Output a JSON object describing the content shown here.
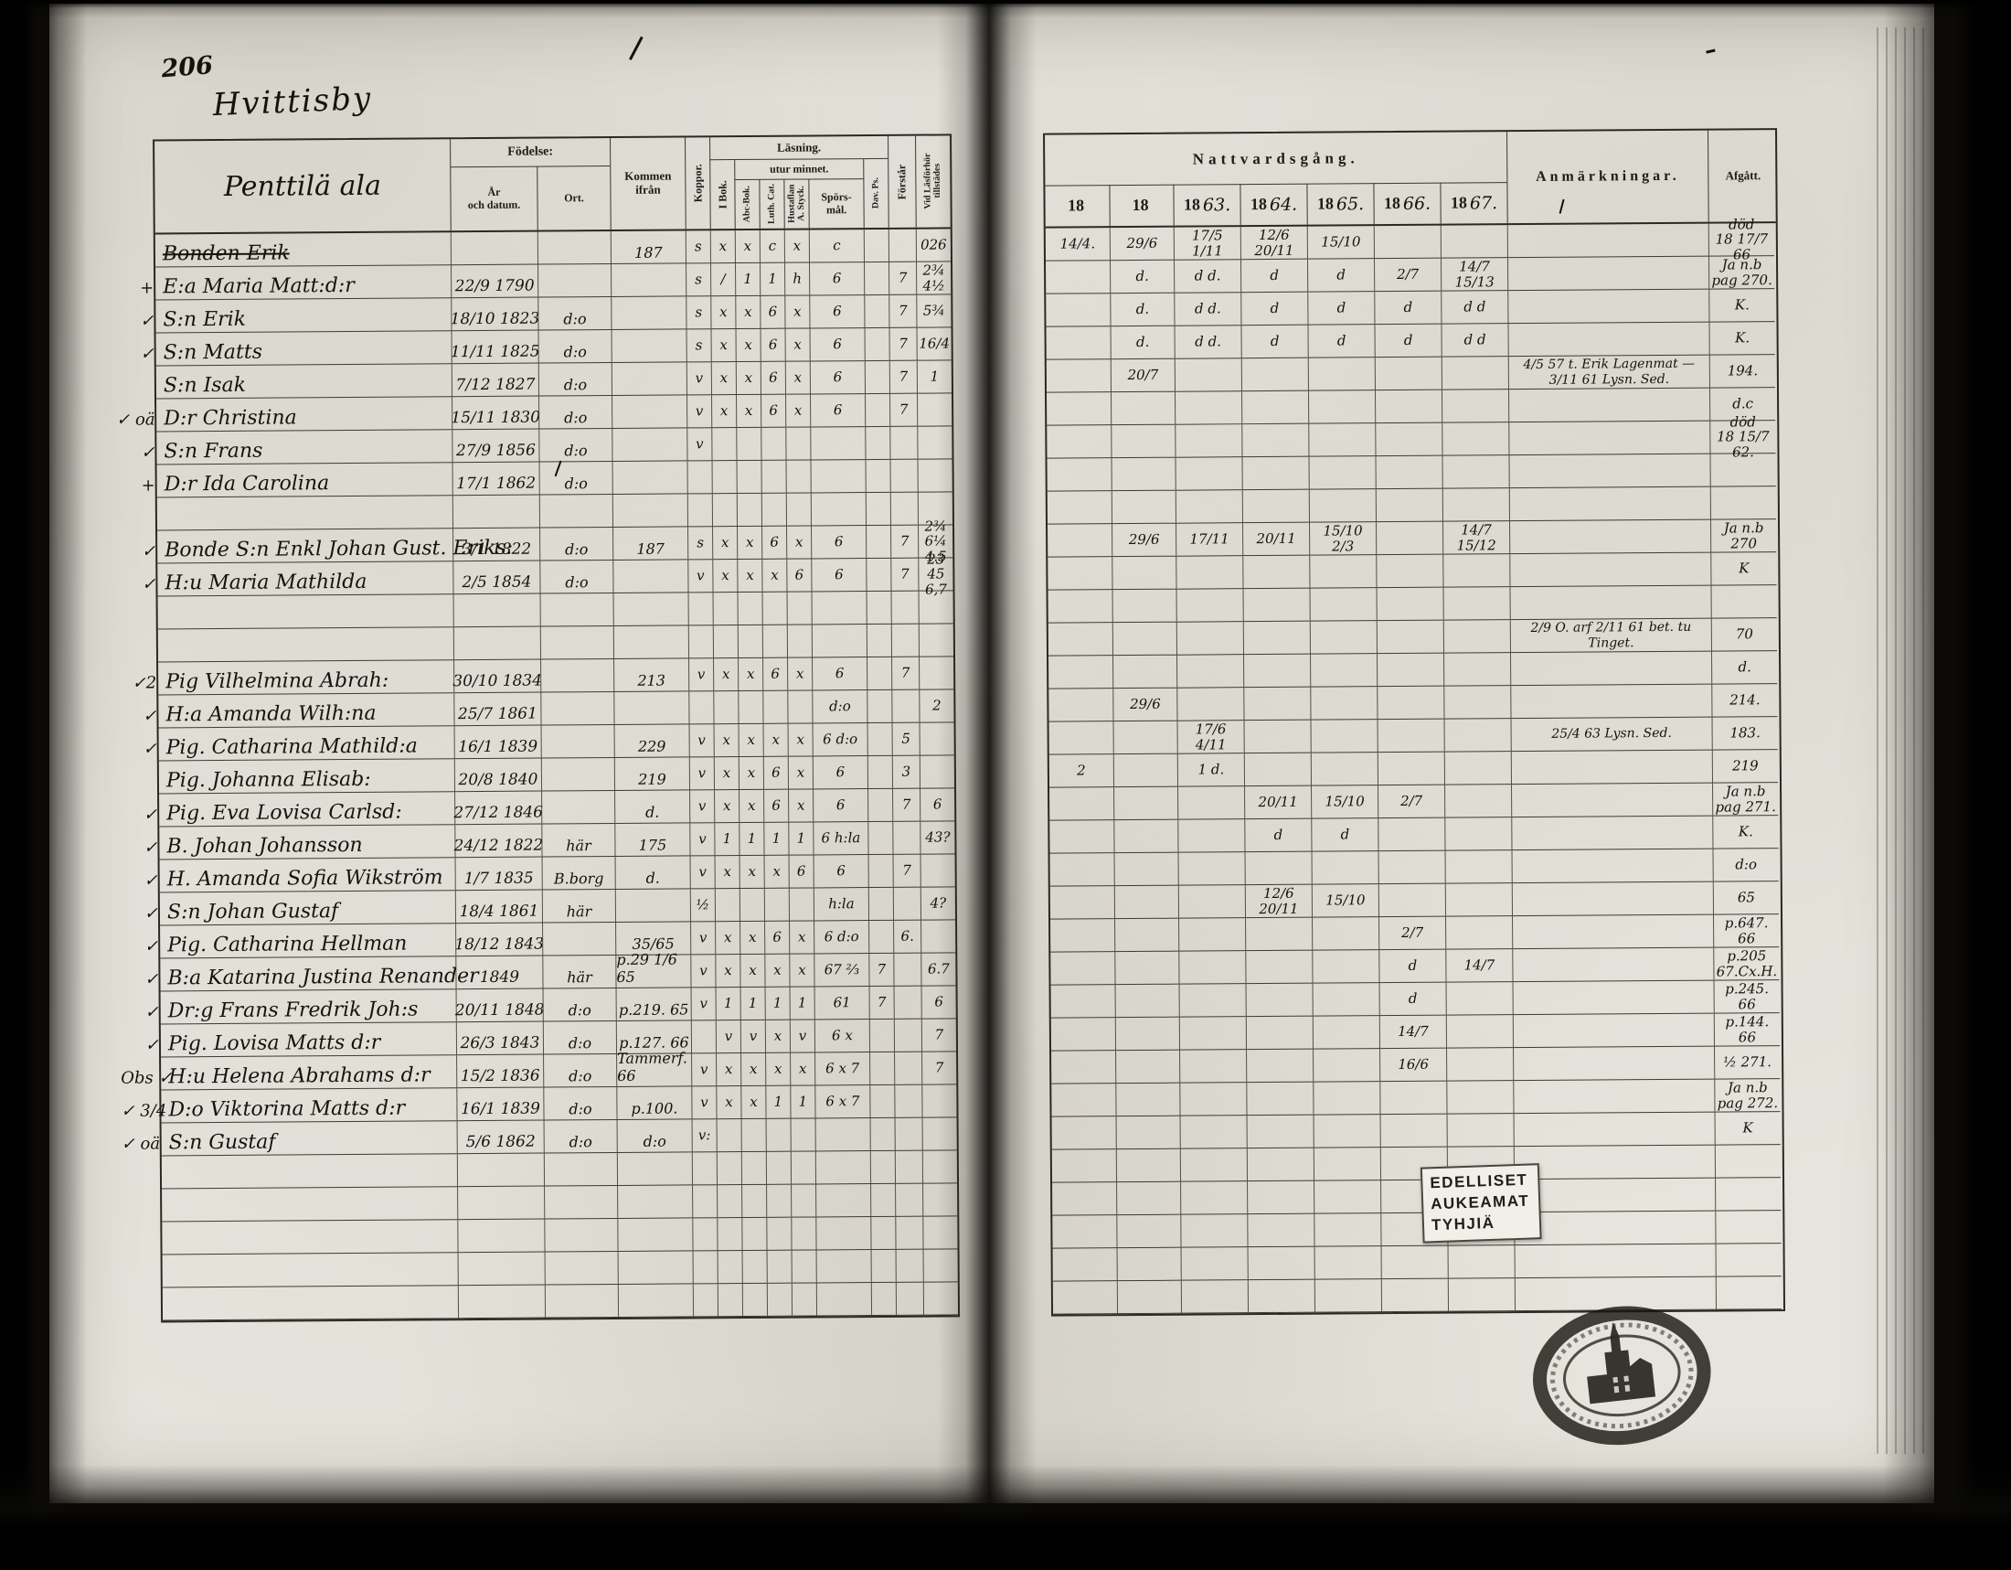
{
  "page_number": "206",
  "titles": {
    "main": "Hvittisby",
    "sub": "Penttilä ala"
  },
  "left_header": {
    "fodelse": "Födelse:",
    "ar": "År\noch datum.",
    "ort": "Ort.",
    "kommen": "Kommen ifrån",
    "koppor": "Koppor.",
    "lasning": "Läsning.",
    "utur": "utur minnet.",
    "ibok": "I Bok.",
    "abc": "Abc-Bok.",
    "luth": "Luth. Cat.",
    "hust": "Hustaflan\nA. Styck.",
    "spors": "Spörs-\nmål.",
    "dav": "Dav. Ps.",
    "forstar": "Förstår",
    "vidlas": "Vid Läsförhör\ntillstädes"
  },
  "right_header": {
    "natt": "Nattvardsgång.",
    "anm": "Anmärkningar.",
    "afg": "Afgått.",
    "years": [
      {
        "printed": "18",
        "hand": ""
      },
      {
        "printed": "18",
        "hand": ""
      },
      {
        "printed": "18",
        "hand": "63."
      },
      {
        "printed": "18",
        "hand": "64."
      },
      {
        "printed": "18",
        "hand": "65."
      },
      {
        "printed": "18",
        "hand": "66."
      },
      {
        "printed": "18",
        "hand": "67."
      }
    ]
  },
  "stamp": {
    "lines": [
      "EDELLISET",
      "AUKEAMAT",
      "TYHJIÄ"
    ]
  },
  "seal": {
    "icon": "church-seal-icon"
  },
  "rows": [
    {
      "m": "",
      "name": "Bonden Erik",
      "strike": true,
      "date": "",
      "ort": "",
      "kommen": "187",
      "marks": [
        "s",
        "x",
        "x",
        "c",
        "x",
        "c",
        "",
        ""
      ],
      "vidlas": "026",
      "natt": [
        "14/4.",
        "29/6",
        "17/5 1/11",
        "12/6 20/11",
        "15/10",
        "",
        ""
      ],
      "anm": "",
      "afg": "död\n18 17/7 66"
    },
    {
      "m": "+",
      "name": "E:a Maria Matt:d:r",
      "strike": false,
      "date": "22/9 1790",
      "ort": "",
      "kommen": "",
      "marks": [
        "s",
        "/",
        "1",
        "1",
        "h",
        "6",
        "",
        "7"
      ],
      "vidlas": "2¾ 4½",
      "natt": [
        "",
        "d.",
        "d d.",
        "d",
        "d",
        "2/7",
        "14/7 15/13"
      ],
      "anm": "",
      "afg": "Ja n.b\npag 270."
    },
    {
      "m": "✓",
      "name": "S:n Erik",
      "strike": false,
      "date": "18/10 1823",
      "ort": "d:o",
      "kommen": "",
      "marks": [
        "s",
        "x",
        "x",
        "6",
        "x",
        "6",
        "",
        "7"
      ],
      "vidlas": "5¾",
      "natt": [
        "",
        "d.",
        "d d.",
        "d",
        "d",
        "d",
        "d d"
      ],
      "anm": "",
      "afg": "K."
    },
    {
      "m": "✓",
      "name": "S:n Matts",
      "strike": false,
      "date": "11/11 1825",
      "ort": "d:o",
      "kommen": "",
      "marks": [
        "s",
        "x",
        "x",
        "6",
        "x",
        "6",
        "",
        "7"
      ],
      "vidlas": "16/4",
      "natt": [
        "",
        "d.",
        "d d.",
        "d",
        "d",
        "d",
        "d d"
      ],
      "anm": "",
      "afg": "K."
    },
    {
      "m": "",
      "name": "S:n Isak",
      "strike": false,
      "date": "7/12 1827",
      "ort": "d:o",
      "kommen": "",
      "marks": [
        "v",
        "x",
        "x",
        "6",
        "x",
        "6",
        "",
        "7"
      ],
      "vidlas": "1",
      "natt": [
        "",
        "20/7",
        "",
        "",
        "",
        "",
        ""
      ],
      "anm": "4/5 57 t. Erik Lagenmat —\n3/11 61 Lysn. Sed.",
      "afg": "194."
    },
    {
      "m": "✓ oä",
      "name": "D:r Christina",
      "strike": false,
      "date": "15/11 1830",
      "ort": "d:o",
      "kommen": "",
      "marks": [
        "v",
        "x",
        "x",
        "6",
        "x",
        "6",
        "",
        "7"
      ],
      "vidlas": "",
      "natt": [
        "",
        "",
        "",
        "",
        "",
        "",
        ""
      ],
      "anm": "",
      "afg": "d.c"
    },
    {
      "m": "✓",
      "name": "S:n Frans",
      "strike": false,
      "date": "27/9 1856",
      "ort": "d:o",
      "kommen": "",
      "marks": [
        "v",
        "",
        "",
        "",
        "",
        "",
        "",
        ""
      ],
      "vidlas": "",
      "natt": [
        "",
        "",
        "",
        "",
        "",
        "",
        ""
      ],
      "anm": "",
      "afg": "död\n18 15/7 62."
    },
    {
      "m": "+",
      "name": "D:r Ida Carolina",
      "strike": false,
      "date": "17/1 1862",
      "ort": "d:o",
      "kommen": "",
      "marks": [
        "",
        "",
        "",
        "",
        "",
        "",
        "",
        ""
      ],
      "vidlas": "",
      "natt": [
        "",
        "",
        "",
        "",
        "",
        "",
        ""
      ],
      "anm": "",
      "afg": ""
    },
    {
      "m": "",
      "name": "",
      "strike": false,
      "date": "",
      "ort": "",
      "kommen": "",
      "marks": [
        "",
        "",
        "",
        "",
        "",
        "",
        "",
        ""
      ],
      "vidlas": "",
      "natt": [
        "",
        "",
        "",
        "",
        "",
        "",
        ""
      ],
      "anm": "",
      "afg": ""
    },
    {
      "m": "✓",
      "name": "Bonde S:n Enkl Johan Gust. Eriks:",
      "strike": false,
      "date": "3/1 1822",
      "ort": "d:o",
      "kommen": "187",
      "marks": [
        "s",
        "x",
        "x",
        "6",
        "x",
        "6",
        "",
        "7"
      ],
      "vidlas": "2¾ 6¼ 4.5",
      "natt": [
        "",
        "29/6",
        "17/11",
        "20/11",
        "15/10 2/3",
        "",
        "14/7 15/12"
      ],
      "anm": "",
      "afg": "Ja n.b\n270"
    },
    {
      "m": "✓",
      "name": "H:u Maria Mathilda",
      "strike": false,
      "date": "2/5 1854",
      "ort": "d:o",
      "kommen": "",
      "marks": [
        "v",
        "x",
        "x",
        "x",
        "6",
        "6",
        "",
        "7"
      ],
      "vidlas": "23 45 6,7",
      "natt": [
        "",
        "",
        "",
        "",
        "",
        "",
        ""
      ],
      "anm": "",
      "afg": "K"
    },
    {
      "m": "",
      "name": "",
      "strike": false,
      "date": "",
      "ort": "",
      "kommen": "",
      "marks": [
        "",
        "",
        "",
        "",
        "",
        "",
        "",
        ""
      ],
      "vidlas": "",
      "natt": [
        "",
        "",
        "",
        "",
        "",
        "",
        ""
      ],
      "anm": "",
      "afg": ""
    },
    {
      "m": "",
      "name": "",
      "strike": false,
      "date": "",
      "ort": "",
      "kommen": "",
      "marks": [
        "",
        "",
        "",
        "",
        "",
        "",
        "",
        ""
      ],
      "vidlas": "",
      "natt": [
        "",
        "",
        "",
        "",
        "",
        "",
        ""
      ],
      "anm": "2/9 O. arf 2/11 61 bet. tu Tinget.",
      "afg": "70"
    },
    {
      "m": "✓2",
      "name": "Pig Vilhelmina Abrah:",
      "strike": false,
      "date": "30/10 1834",
      "ort": "",
      "kommen": "213",
      "marks": [
        "v",
        "x",
        "x",
        "6",
        "x",
        "6",
        "",
        "7"
      ],
      "vidlas": "",
      "natt": [
        "",
        "",
        "",
        "",
        "",
        "",
        ""
      ],
      "anm": "",
      "afg": "d."
    },
    {
      "m": "✓",
      "name": "H:a Amanda Wilh:na",
      "strike": false,
      "date": "25/7 1861",
      "ort": "",
      "kommen": "",
      "marks": [
        "",
        "",
        "",
        "",
        "",
        "d:o",
        "",
        ""
      ],
      "vidlas": "2",
      "natt": [
        "",
        "29/6",
        "",
        "",
        "",
        "",
        ""
      ],
      "anm": "",
      "afg": "214."
    },
    {
      "m": "✓",
      "name": "Pig. Catharina Mathild:a",
      "strike": false,
      "date": "16/1 1839",
      "ort": "",
      "kommen": "229",
      "marks": [
        "v",
        "x",
        "x",
        "x",
        "x",
        "6 d:o",
        "",
        "5"
      ],
      "vidlas": "",
      "natt": [
        "",
        "",
        "17/6 4/11",
        "",
        "",
        "",
        ""
      ],
      "anm": "25/4 63 Lysn. Sed.",
      "afg": "183."
    },
    {
      "m": "",
      "name": "Pig. Johanna Elisab:",
      "strike": false,
      "date": "20/8 1840",
      "ort": "",
      "kommen": "219",
      "marks": [
        "v",
        "x",
        "x",
        "6",
        "x",
        "6",
        "",
        "3"
      ],
      "vidlas": "",
      "natt": [
        "2",
        "",
        "1 d.",
        "",
        "",
        "",
        ""
      ],
      "anm": "",
      "afg": "219"
    },
    {
      "m": "✓",
      "name": "Pig. Eva Lovisa Carlsd:",
      "strike": false,
      "date": "27/12 1846",
      "ort": "",
      "kommen": "d.",
      "marks": [
        "v",
        "x",
        "x",
        "6",
        "x",
        "6",
        "",
        "7"
      ],
      "vidlas": "6",
      "natt": [
        "",
        "",
        "",
        "20/11",
        "15/10",
        "2/7",
        ""
      ],
      "anm": "",
      "afg": "Ja n.b\npag 271."
    },
    {
      "m": "✓",
      "name": "B. Johan Johansson",
      "strike": false,
      "date": "24/12 1822",
      "ort": "här",
      "kommen": "175",
      "marks": [
        "v",
        "1",
        "1",
        "1",
        "1",
        "6 h:la",
        "",
        ""
      ],
      "vidlas": "43?",
      "natt": [
        "",
        "",
        "",
        "d",
        "d",
        "",
        ""
      ],
      "anm": "",
      "afg": "K."
    },
    {
      "m": "✓",
      "name": "H. Amanda Sofia Wikström",
      "strike": false,
      "date": "1/7 1835",
      "ort": "B.borg",
      "kommen": "d.",
      "marks": [
        "v",
        "x",
        "x",
        "x",
        "6",
        "6",
        "",
        "7"
      ],
      "vidlas": "",
      "natt": [
        "",
        "",
        "",
        "",
        "",
        "",
        ""
      ],
      "anm": "",
      "afg": "d:o"
    },
    {
      "m": "✓",
      "name": "S:n Johan Gustaf",
      "strike": false,
      "date": "18/4 1861",
      "ort": "här",
      "kommen": "",
      "marks": [
        "½",
        "",
        "",
        "",
        "",
        "h:la",
        "",
        ""
      ],
      "vidlas": "4?",
      "natt": [
        "",
        "",
        "",
        "12/6 20/11",
        "15/10",
        "",
        ""
      ],
      "anm": "",
      "afg": "65"
    },
    {
      "m": "✓",
      "name": "Pig. Catharina Hellman",
      "strike": false,
      "date": "18/12 1843",
      "ort": "",
      "kommen": "35/65",
      "marks": [
        "v",
        "x",
        "x",
        "6",
        "x",
        "6 d:o",
        "",
        "6."
      ],
      "vidlas": "",
      "natt": [
        "",
        "",
        "",
        "",
        "",
        "2/7",
        ""
      ],
      "anm": "",
      "afg": "p.647.\n66"
    },
    {
      "m": "✓",
      "name": "B:a Katarina Justina Renander",
      "strike": false,
      "date": "1849",
      "ort": "här",
      "kommen": "p.29 1/6 65",
      "marks": [
        "v",
        "x",
        "x",
        "x",
        "x",
        "67 ⅔",
        "7",
        ""
      ],
      "vidlas": "6.7",
      "natt": [
        "",
        "",
        "",
        "",
        "",
        "d",
        "14/7"
      ],
      "anm": "",
      "afg": "p.205\n67.Cx.H."
    },
    {
      "m": "✓",
      "name": "Dr:g Frans Fredrik Joh:s",
      "strike": false,
      "date": "20/11 1848",
      "ort": "d:o",
      "kommen": "p.219. 65",
      "marks": [
        "v",
        "1",
        "1",
        "1",
        "1",
        "61",
        "7",
        ""
      ],
      "vidlas": "6",
      "natt": [
        "",
        "",
        "",
        "",
        "",
        "d",
        ""
      ],
      "anm": "",
      "afg": "p.245.\n66"
    },
    {
      "m": "✓",
      "name": "Pig. Lovisa Matts d:r",
      "strike": false,
      "date": "26/3 1843",
      "ort": "d:o",
      "kommen": "p.127. 66",
      "marks": [
        "",
        "v",
        "v",
        "x",
        "v",
        "6 x",
        "",
        ""
      ],
      "vidlas": "7",
      "natt": [
        "",
        "",
        "",
        "",
        "",
        "14/7",
        ""
      ],
      "anm": "",
      "afg": "p.144.\n66"
    },
    {
      "m": "Obs ✓",
      "name": "H:u Helena Abrahams d:r",
      "strike": false,
      "date": "15/2 1836",
      "ort": "d:o",
      "kommen": "Tammerf. 66",
      "marks": [
        "v",
        "x",
        "x",
        "x",
        "x",
        "6 x 7",
        "",
        ""
      ],
      "vidlas": "7",
      "natt": [
        "",
        "",
        "",
        "",
        "",
        "16/6",
        ""
      ],
      "anm": "",
      "afg": "½ 271."
    },
    {
      "m": "✓ 3/4",
      "name": "D:o Viktorina Matts d:r",
      "strike": false,
      "date": "16/1 1839",
      "ort": "d:o",
      "kommen": "p.100.",
      "marks": [
        "v",
        "x",
        "x",
        "1",
        "1",
        "6 x 7",
        "",
        ""
      ],
      "vidlas": "",
      "natt": [
        "",
        "",
        "",
        "",
        "",
        "",
        ""
      ],
      "anm": "",
      "afg": "Ja n.b\npag 272."
    },
    {
      "m": "✓ oä",
      "name": "S:n Gustaf",
      "strike": false,
      "date": "5/6 1862",
      "ort": "d:o",
      "kommen": "d:o",
      "marks": [
        "v:",
        "",
        "",
        "",
        "",
        "",
        "",
        ""
      ],
      "vidlas": "",
      "natt": [
        "",
        "",
        "",
        "",
        "",
        "",
        ""
      ],
      "anm": "",
      "afg": "K"
    },
    {
      "m": "",
      "name": "",
      "strike": false,
      "date": "",
      "ort": "",
      "kommen": "",
      "marks": [
        "",
        "",
        "",
        "",
        "",
        "",
        "",
        ""
      ],
      "vidlas": "",
      "natt": [
        "",
        "",
        "",
        "",
        "",
        "",
        ""
      ],
      "anm": "",
      "afg": ""
    },
    {
      "m": "",
      "name": "",
      "strike": false,
      "date": "",
      "ort": "",
      "kommen": "",
      "marks": [
        "",
        "",
        "",
        "",
        "",
        "",
        "",
        ""
      ],
      "vidlas": "",
      "natt": [
        "",
        "",
        "",
        "",
        "",
        "",
        ""
      ],
      "anm": "",
      "afg": ""
    },
    {
      "m": "",
      "name": "",
      "strike": false,
      "date": "",
      "ort": "",
      "kommen": "",
      "marks": [
        "",
        "",
        "",
        "",
        "",
        "",
        "",
        ""
      ],
      "vidlas": "",
      "natt": [
        "",
        "",
        "",
        "",
        "",
        "",
        ""
      ],
      "anm": "",
      "afg": ""
    },
    {
      "m": "",
      "name": "",
      "strike": false,
      "date": "",
      "ort": "",
      "kommen": "",
      "marks": [
        "",
        "",
        "",
        "",
        "",
        "",
        "",
        ""
      ],
      "vidlas": "",
      "natt": [
        "",
        "",
        "",
        "",
        "",
        "",
        ""
      ],
      "anm": "",
      "afg": ""
    },
    {
      "m": "",
      "name": "",
      "strike": false,
      "date": "",
      "ort": "",
      "kommen": "",
      "marks": [
        "",
        "",
        "",
        "",
        "",
        "",
        "",
        ""
      ],
      "vidlas": "",
      "natt": [
        "",
        "",
        "",
        "",
        "",
        "",
        ""
      ],
      "anm": "",
      "afg": ""
    }
  ]
}
